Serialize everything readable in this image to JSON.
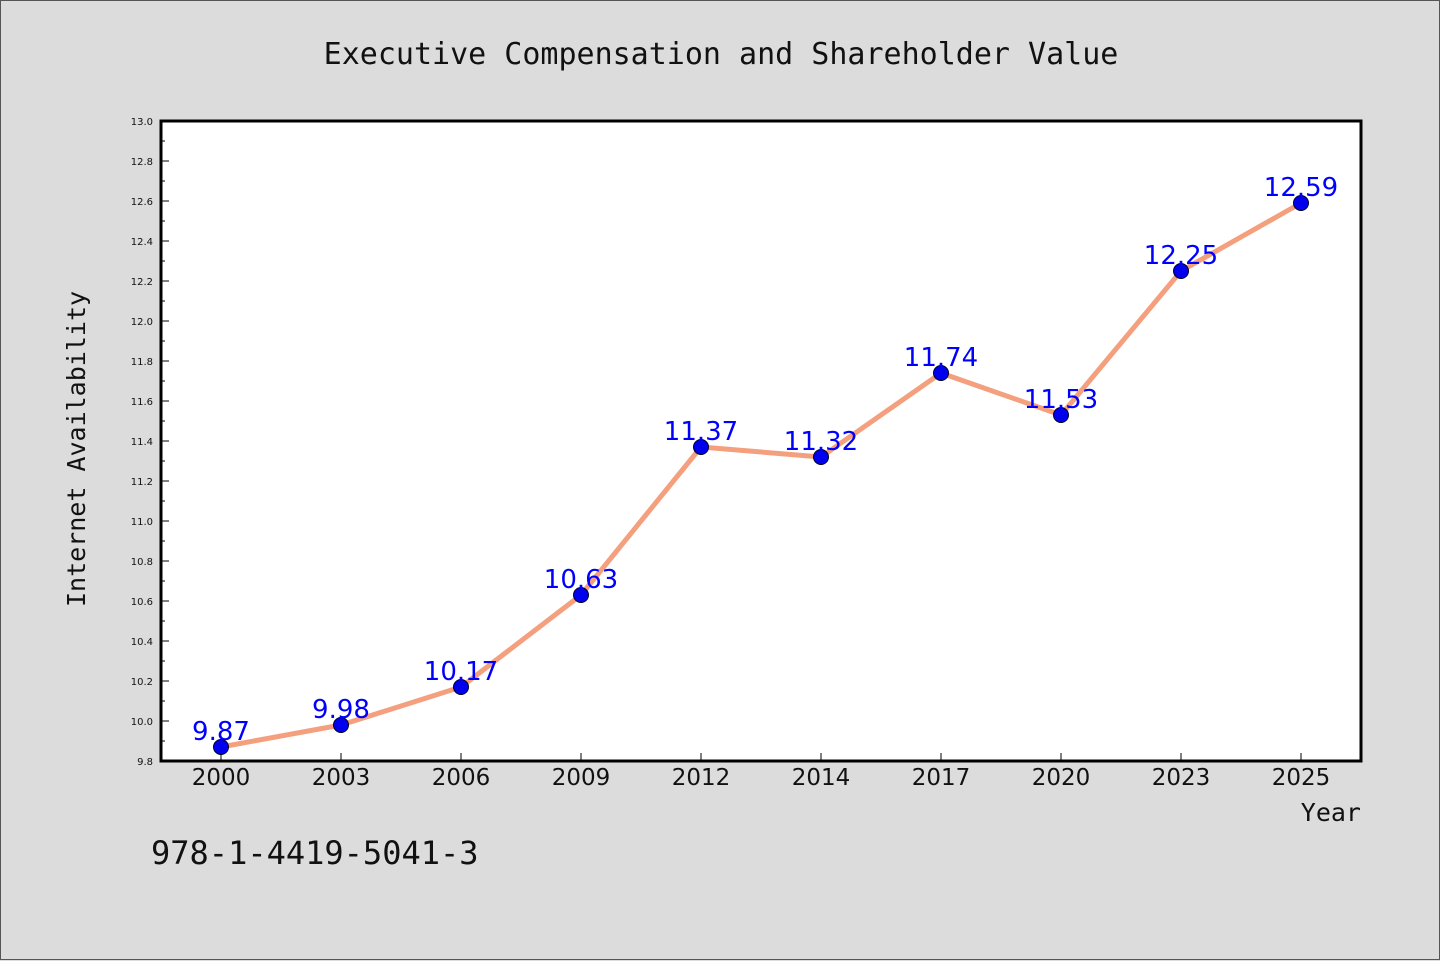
{
  "chart_data": {
    "type": "line",
    "title": "Executive Compensation and Shareholder Value",
    "xlabel": "Year",
    "ylabel": "Internet Availability",
    "categories": [
      "2000",
      "2003",
      "2006",
      "2009",
      "2012",
      "2014",
      "2017",
      "2020",
      "2023",
      "2025"
    ],
    "series": [
      {
        "values": [
          9.87,
          9.98,
          10.17,
          10.63,
          11.37,
          11.32,
          11.74,
          11.53,
          12.25,
          12.59
        ],
        "line_color": "#f4a07e",
        "marker_color": "#0000ee",
        "label_color": "#0000ff"
      }
    ],
    "data_labels": [
      "9.87",
      "9.98",
      "10.17",
      "10.63",
      "11.37",
      "11.32",
      "11.74",
      "11.53",
      "12.25",
      "12.59"
    ],
    "ylim": [
      9.8,
      13.0
    ],
    "yticks": [
      "9.8",
      "10.0",
      "10.2",
      "10.4",
      "10.6",
      "10.8",
      "11.0",
      "11.2",
      "11.4",
      "11.6",
      "11.8",
      "12.0",
      "12.2",
      "12.4",
      "12.6",
      "12.8",
      "13.0"
    ],
    "grid": false,
    "legend": "none"
  },
  "footer": {
    "isbn": "978-1-4419-5041-3"
  },
  "colors": {
    "background": "#dcdcdc",
    "plot_background": "#ffffff",
    "axes": "#000000"
  }
}
